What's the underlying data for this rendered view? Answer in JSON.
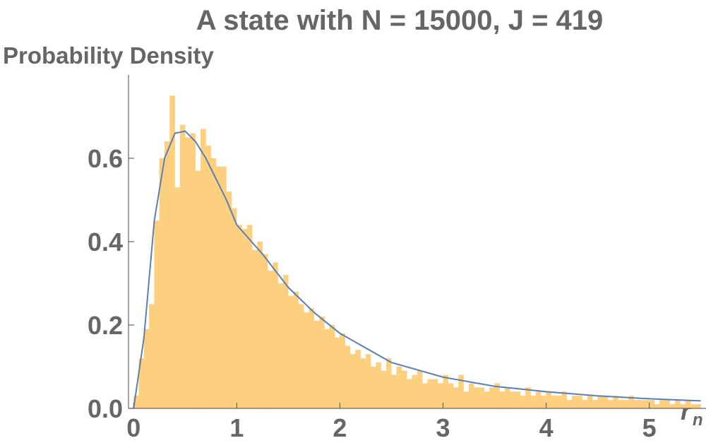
{
  "chart_data": {
    "type": "histogram",
    "title": "A state with N = 15000, J = 419",
    "y_label": "Probability Density",
    "x_label": "r",
    "x_label_subscript": "n",
    "color": "#fdd07f",
    "bins": [
      0,
      0.05,
      0.1,
      0.15,
      0.2,
      0.25,
      0.3,
      0.35,
      0.4,
      0.45,
      0.5,
      0.55,
      0.6,
      0.65,
      0.7,
      0.75,
      0.8,
      0.85,
      0.9,
      0.95,
      1,
      1.05,
      1.1,
      1.15,
      1.2,
      1.25,
      1.3,
      1.35,
      1.4,
      1.45,
      1.5,
      1.55,
      1.6,
      1.65,
      1.7,
      1.75,
      1.8,
      1.85,
      1.9,
      1.95,
      2,
      2.05,
      2.1,
      2.15,
      2.2,
      2.25,
      2.3,
      2.35,
      2.4,
      2.45,
      2.5,
      2.55,
      2.6,
      2.65,
      2.7,
      2.75,
      2.8,
      2.85,
      2.9,
      2.95,
      3,
      3.05,
      3.1,
      3.15,
      3.2,
      3.25,
      3.3,
      3.35,
      3.4,
      3.45,
      3.5,
      3.55,
      3.6,
      3.65,
      3.7,
      3.75,
      3.8,
      3.85,
      3.9,
      3.95,
      4,
      4.05,
      4.1,
      4.15,
      4.2,
      4.25,
      4.3,
      4.35,
      4.4,
      4.45,
      4.5,
      4.55,
      4.6,
      4.65,
      4.7,
      4.75,
      4.8,
      4.85,
      4.9,
      4.95,
      5,
      5.05,
      5.1,
      5.15,
      5.2,
      5.25,
      5.3,
      5.35,
      5.4,
      5.45,
      5.5
    ],
    "values": [
      0.03,
      0.12,
      0.19,
      0.25,
      0.45,
      0.6,
      0.64,
      0.75,
      0.53,
      0.68,
      0.65,
      0.66,
      0.57,
      0.67,
      0.63,
      0.6,
      0.58,
      0.58,
      0.52,
      0.48,
      0.44,
      0.43,
      0.44,
      0.38,
      0.4,
      0.37,
      0.33,
      0.35,
      0.3,
      0.32,
      0.27,
      0.28,
      0.25,
      0.23,
      0.24,
      0.21,
      0.22,
      0.19,
      0.2,
      0.17,
      0.18,
      0.15,
      0.13,
      0.14,
      0.12,
      0.13,
      0.1,
      0.11,
      0.09,
      0.12,
      0.08,
      0.1,
      0.09,
      0.07,
      0.08,
      0.09,
      0.06,
      0.07,
      0.07,
      0.06,
      0.08,
      0.06,
      0.05,
      0.08,
      0.04,
      0.06,
      0.05,
      0.05,
      0.04,
      0.05,
      0.06,
      0.04,
      0.05,
      0.04,
      0.04,
      0.03,
      0.05,
      0.03,
      0.04,
      0.03,
      0.04,
      0.03,
      0.03,
      0.04,
      0.02,
      0.03,
      0.03,
      0.02,
      0.03,
      0.02,
      0.03,
      0.03,
      0.02,
      0.03,
      0.02,
      0.02,
      0.03,
      0.02,
      0.02,
      0.02,
      0.02,
      0.01,
      0.02,
      0.02,
      0.01,
      0.02,
      0.01,
      0.02,
      0.01,
      0.01
    ],
    "curve": {
      "color": "#5b7fb5",
      "x": [
        0,
        0.1,
        0.2,
        0.3,
        0.4,
        0.5,
        0.6,
        0.7,
        0.8,
        0.9,
        1,
        1.25,
        1.5,
        1.75,
        2,
        2.5,
        3,
        3.5,
        4,
        4.5,
        5,
        5.5
      ],
      "values": [
        0,
        0.17,
        0.45,
        0.6,
        0.66,
        0.665,
        0.64,
        0.6,
        0.55,
        0.5,
        0.44,
        0.37,
        0.29,
        0.23,
        0.18,
        0.11,
        0.075,
        0.053,
        0.04,
        0.03,
        0.023,
        0.018
      ]
    },
    "xlim": [
      -0.05,
      5.55
    ],
    "ylim": [
      0,
      0.8
    ],
    "xticks": [
      0,
      1,
      2,
      3,
      4,
      5
    ],
    "yticks": [
      {
        "value": 0,
        "label": "0.0"
      },
      0.2,
      0.4,
      0.6
    ]
  }
}
